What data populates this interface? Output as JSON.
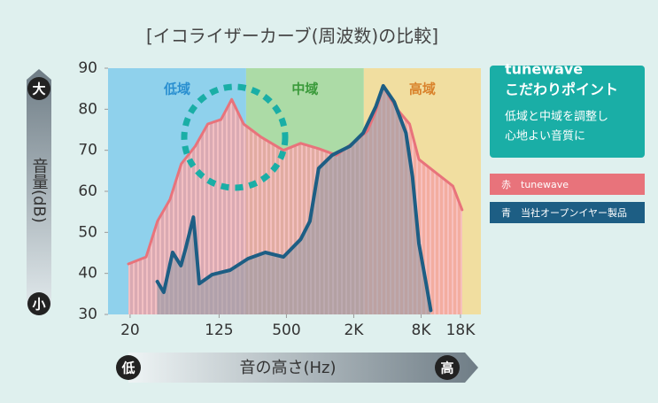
{
  "chart_data": {
    "type": "line",
    "title": "[イコライザーカーブ(周波数)の比較]",
    "xscale": "log",
    "xlim": [
      12.7,
      27400
    ],
    "xticks": [
      20,
      125,
      500,
      {
        "value": 2000,
        "label": "2K"
      },
      {
        "value": 8000,
        "label": "8K"
      },
      {
        "value": 18000,
        "label": "18K"
      }
    ],
    "ylim": [
      30,
      90
    ],
    "yticks": [
      30,
      40,
      50,
      60,
      70,
      80,
      90
    ],
    "y_axis": {
      "top": "大",
      "bottom": "小",
      "label": "音量(dB)"
    },
    "x_axis": {
      "low": "低",
      "label": "音の高さ(Hz)",
      "high": "高"
    },
    "bands": [
      {
        "name": "低域",
        "from": 12.7,
        "to": 218,
        "color": "#8fd1ec",
        "text_color": "#2a8fd0"
      },
      {
        "name": "中域",
        "from": 218,
        "to": 2460,
        "color": "#acdba6",
        "text_color": "#3a9a3a"
      },
      {
        "name": "高域",
        "from": 2460,
        "to": 27400,
        "color": "#f1dea0",
        "text_color": "#d9822b"
      }
    ],
    "series": [
      {
        "name": "tunewave",
        "legend_prefix": "赤",
        "color": "#e8737b",
        "x": [
          19.3,
          27.8,
          35.1,
          45.4,
          57.4,
          76.6,
          99,
          130,
          162,
          207,
          297,
          470,
          670,
          970,
          1400,
          2000,
          2650,
          3160,
          3670,
          4180,
          5040,
          6310,
          7640,
          10900,
          15400,
          18600
        ],
        "values": [
          42.3,
          44,
          52.7,
          58,
          66.7,
          71,
          76.4,
          77.5,
          82.4,
          76.4,
          73.2,
          70,
          71.7,
          70.4,
          68.8,
          72,
          74.7,
          79.6,
          85.7,
          82.9,
          79.6,
          76.4,
          67.8,
          64.5,
          61.3,
          55.5
        ]
      },
      {
        "name": "当社オープンイヤー製品",
        "legend_prefix": "青",
        "color": "#1d5e84",
        "x": [
          35,
          40,
          48,
          57,
          63,
          73.6,
          83,
          108,
          157,
          227,
          324,
          470,
          670,
          810,
          970,
          1280,
          1850,
          2430,
          3160,
          3670,
          4600,
          5860,
          6700,
          7640,
          8880,
          9760
        ],
        "values": [
          38,
          35.4,
          45.1,
          41.9,
          46.2,
          53.7,
          37.5,
          39.7,
          40.8,
          43.6,
          45.1,
          44,
          48.3,
          52.7,
          65.6,
          68.8,
          71,
          74.2,
          80.7,
          85.7,
          81.8,
          74.2,
          63.5,
          47.3,
          37.5,
          31
        ]
      }
    ],
    "callout": {
      "title_lines": [
        "tunewave",
        "こだわりポイント"
      ],
      "text_lines": [
        "低域と中域を調整し",
        "心地よい音質に"
      ]
    }
  }
}
